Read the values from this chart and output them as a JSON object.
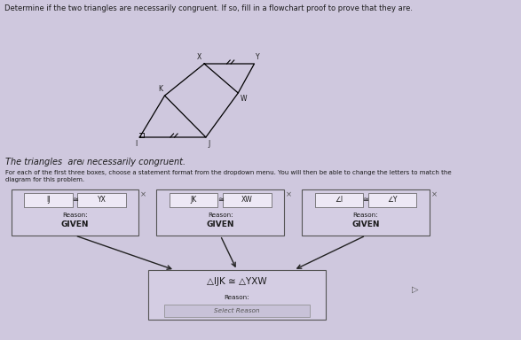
{
  "bg_color": "#cfc8de",
  "title_text": "Determine if the two triangles are necessarily congruent. If so, fill in a flowchart proof to prove that they are.",
  "box1_inner": "IJ ≅ YX",
  "box2_inner": "JK ≅ XW",
  "box3_inner": "∠I ≅ ∠Y",
  "reason_label": "Reason:",
  "given_text": "GIVEN",
  "box4_main": "△IJK ≅ △YXW",
  "box4_reason": "Reason:",
  "box4_field": "Select Reason",
  "x_mark": "×",
  "statement_line1": "The triangles  are",
  "statement_dropdown": "∨",
  "statement_line2": "necessarily congruent.",
  "instr1": "For each of the first three boxes, choose a statement format from the dropdown menu. You will then be able to change the letters to match the",
  "instr2": "diagram for this problem.",
  "font_color": "#1a1a1a",
  "box_bg": "#d4cde3",
  "box_edge": "#555555",
  "inner_bg": "#ede8f5",
  "arrow_color": "#222222",
  "field_bg": "#c8c2d8",
  "cursor_char": "▷"
}
